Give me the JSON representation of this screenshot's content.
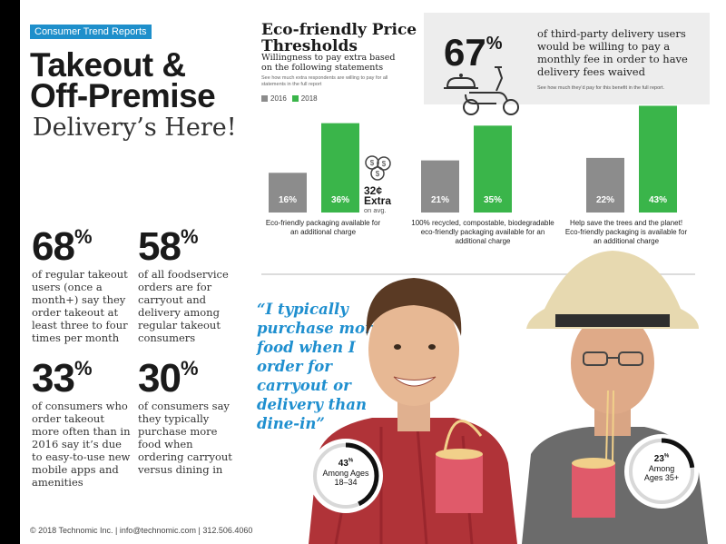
{
  "report_tag": "Consumer Trend Reports",
  "headline": {
    "line1": "Takeout &",
    "line2": "Off-Premise"
  },
  "subhead": "Delivery’s Here!",
  "stats": [
    {
      "value": "68",
      "unit": "%",
      "text": "of regular takeout users (once a month+) say they order takeout at least three to four times per month"
    },
    {
      "value": "58",
      "unit": "%",
      "text": "of all foodservice orders are for carryout and delivery among regular takeout consumers"
    },
    {
      "value": "33",
      "unit": "%",
      "text": "of consumers who order takeout more often than in 2016 say it’s due to easy-to-use new mobile apps and amenities"
    },
    {
      "value": "30",
      "unit": "%",
      "text": "of consumers say they typically purchase more food when ordering carryout versus dining in"
    }
  ],
  "chart": {
    "title_line1": "Eco-friendly Price",
    "title_line2": "Thresholds",
    "subtitle": "Willingness to pay extra based on the following statements",
    "note": "See how much extra respondents are willing to pay for all statements in the full report",
    "legend": [
      "2016",
      "2018"
    ],
    "colors": {
      "2016": "#8c8c8c",
      "2018": "#3ab54a"
    },
    "price_badge": {
      "value": "32¢",
      "label": "Extra",
      "sub": "on avg.",
      "icon": "coins-icon"
    }
  },
  "chart_data": {
    "type": "bar",
    "categories": [
      "Eco-friendly packaging available for an additional charge",
      "100% recycled, compostable, biodegradable eco-friendly packaging available for an additional charge",
      "Help save the trees and the planet! Eco-friendly packaging is available for an additional charge"
    ],
    "series": [
      {
        "name": "2016",
        "values": [
          16,
          21,
          22
        ],
        "labels": [
          "16%",
          "21%",
          "22%"
        ]
      },
      {
        "name": "2018",
        "values": [
          36,
          35,
          43
        ],
        "labels": [
          "36%",
          "35%",
          "43%"
        ]
      }
    ],
    "ylim": [
      0,
      50
    ],
    "title": "Eco-friendly Price Thresholds",
    "legend_position": "top-left"
  },
  "delivery_fee": {
    "value": "67",
    "unit": "%",
    "text": "of third-party delivery users would be willing to pay a monthly fee in order to have delivery fees waived",
    "note": "See how much they’d pay for this benefit in the full report.",
    "icon": "delivery-scooter-icon"
  },
  "quote": "“I typically purchase more food when I order for carryout or delivery than dine-in”",
  "age_rings": [
    {
      "value": "43",
      "unit": "%",
      "line1": "Among Ages",
      "line2": "18–34",
      "fraction": 0.43
    },
    {
      "value": "23",
      "unit": "%",
      "line1": "Among",
      "line2": "Ages 35+",
      "fraction": 0.23
    }
  ],
  "footer": "© 2018 Technomic Inc. | info@technomic.com | 312.506.4060"
}
